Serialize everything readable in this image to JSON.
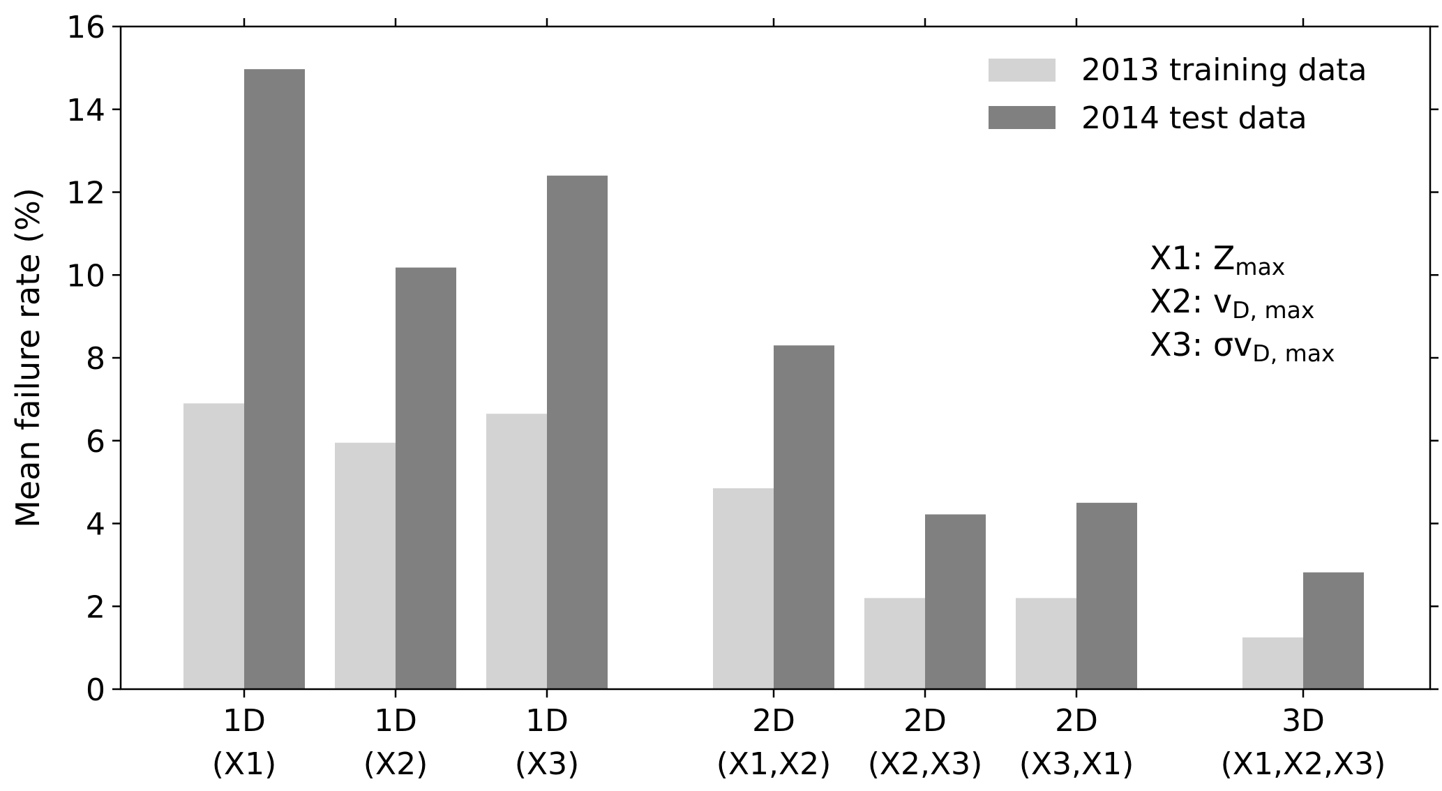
{
  "chart_data": {
    "type": "bar",
    "ylabel": "Mean failure rate (%)",
    "xlabel": "",
    "ylim": [
      0,
      16
    ],
    "yticks": [
      0,
      2,
      4,
      6,
      8,
      10,
      12,
      14,
      16
    ],
    "categories": [
      {
        "line1": "1D",
        "line2": "(X1)"
      },
      {
        "line1": "1D",
        "line2": "(X2)"
      },
      {
        "line1": "1D",
        "line2": "(X3)"
      },
      {
        "line1": "2D",
        "line2": "(X1,X2)"
      },
      {
        "line1": "2D",
        "line2": "(X2,X3)"
      },
      {
        "line1": "2D",
        "line2": "(X3,X1)"
      },
      {
        "line1": "3D",
        "line2": "(X1,X2,X3)"
      }
    ],
    "series": [
      {
        "name": "2013 training data",
        "color": "#d3d3d3",
        "values": [
          6.9,
          5.95,
          6.65,
          4.85,
          2.2,
          2.2,
          1.25
        ]
      },
      {
        "name": "2014 test data",
        "color": "#808080",
        "values": [
          14.97,
          10.18,
          12.4,
          8.3,
          4.22,
          4.5,
          2.82
        ]
      }
    ],
    "legend_position": "top-right",
    "grid": false,
    "annotation": [
      {
        "main": "X1: Z",
        "sub": "max"
      },
      {
        "main": "X2: v",
        "sub": "D, max"
      },
      {
        "main": "X3: σv",
        "sub": "D, max"
      }
    ]
  }
}
